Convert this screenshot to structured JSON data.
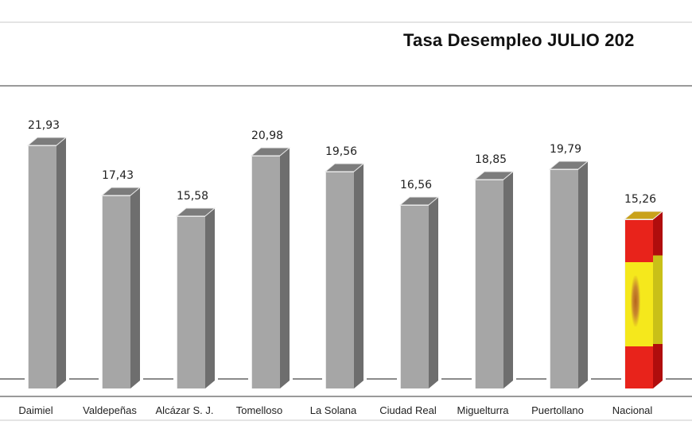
{
  "chart_data": {
    "type": "bar",
    "title": "Tasa Desempleo JULIO 202",
    "xlabel": "",
    "ylabel": "",
    "categories": [
      "Daimiel",
      "Valdepeñas",
      "Alcázar S. J.",
      "Tomelloso",
      "La Solana",
      "Ciudad Real",
      "Miguelturra",
      "Puertollano",
      "Nacional"
    ],
    "values": [
      21.93,
      17.43,
      15.58,
      20.98,
      19.56,
      16.56,
      18.85,
      19.79,
      15.26
    ],
    "value_labels": [
      "21,93",
      "17,43",
      "15,58",
      "20,98",
      "19,56",
      "16,56",
      "18,85",
      "19,79",
      "15,26"
    ],
    "ylim": [
      0,
      25
    ],
    "grid": false,
    "legend": "none",
    "style": "3d-column",
    "colors": {
      "bar_front": "#a6a6a6",
      "bar_side": "#6e6e6e",
      "bar_top": "#7c7c7c",
      "highlight_red": "#e8231b",
      "highlight_yellow": "#f5e81c",
      "highlight_side": "#b00d0d"
    },
    "highlight_category": "Nacional",
    "highlight_fill": "spain-flag"
  },
  "header": {
    "title": "Tasa Desempleo JULIO 202"
  }
}
